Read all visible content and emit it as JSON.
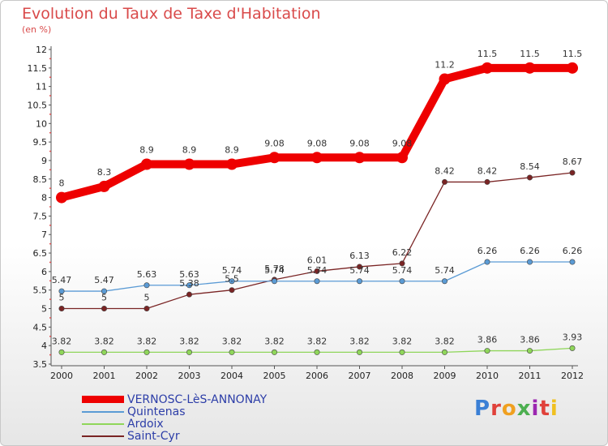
{
  "header": {
    "title": "Evolution du Taux de Taxe d'Habitation",
    "subtitle": "(en %)"
  },
  "logo": {
    "text": "Proxiti",
    "letter_colors": [
      "#3a7fd5",
      "#e0413a",
      "#f0a020",
      "#4caf50",
      "#9c27b0",
      "#e0413a",
      "#f0c020"
    ]
  },
  "chart_data": {
    "type": "line",
    "title": "Evolution du Taux de Taxe d'Habitation",
    "subtitle": "(en %)",
    "xlabel": "",
    "ylabel": "",
    "x": [
      "2000",
      "2001",
      "2002",
      "2003",
      "2004",
      "2005",
      "2006",
      "2007",
      "2008",
      "2009",
      "2010",
      "2011",
      "2012"
    ],
    "ylim": [
      3.5,
      12
    ],
    "yticks": [
      "3.5",
      "4",
      "4.5",
      "5",
      "5.5",
      "6",
      "6.5",
      "7",
      "7.5",
      "8",
      "8.5",
      "9",
      "9.5",
      "10",
      "10.5",
      "11",
      "11.5",
      "12"
    ],
    "grid": false,
    "legend_position": "bottom-left",
    "series": [
      {
        "name": "VERNOSC-LèS-ANNONAY",
        "color": "#ee0000",
        "values": [
          8,
          8.3,
          8.9,
          8.9,
          8.9,
          9.08,
          9.08,
          9.08,
          9.08,
          11.2,
          11.5,
          11.5,
          11.5
        ],
        "labels": [
          "8",
          "8.3",
          "8.9",
          "8.9",
          "8.9",
          "9.08",
          "9.08",
          "9.08",
          "9.08",
          "11.2",
          "11.5",
          "11.5",
          "11.5"
        ]
      },
      {
        "name": "Quintenas",
        "color": "#5b9bd5",
        "values": [
          5.47,
          5.47,
          5.63,
          5.63,
          5.74,
          5.74,
          5.74,
          5.74,
          5.74,
          5.74,
          6.26,
          6.26,
          6.26
        ],
        "labels": [
          "5.47",
          "5.47",
          "5.63",
          "5.63",
          "5.74",
          "5.74",
          "5.74",
          "5.74",
          "5.74",
          "5.74",
          "6.26",
          "6.26",
          "6.26"
        ]
      },
      {
        "name": "Ardoix",
        "color": "#8fd65a",
        "values": [
          3.82,
          3.82,
          3.82,
          3.82,
          3.82,
          3.82,
          3.82,
          3.82,
          3.82,
          3.82,
          3.86,
          3.86,
          3.93
        ],
        "labels": [
          "3.82",
          "3.82",
          "3.82",
          "3.82",
          "3.82",
          "3.82",
          "3.82",
          "3.82",
          "3.82",
          "3.82",
          "3.86",
          "3.86",
          "3.93"
        ]
      },
      {
        "name": "Saint-Cyr",
        "color": "#7a2424",
        "values": [
          5,
          5,
          5,
          5.38,
          5.5,
          5.78,
          6.01,
          6.13,
          6.22,
          8.42,
          8.42,
          8.54,
          8.67
        ],
        "labels": [
          "5",
          "5",
          "5",
          "5.38",
          "5.5",
          "5.78",
          "6.01",
          "6.13",
          "6.22",
          "8.42",
          "8.42",
          "8.54",
          "8.67"
        ]
      }
    ]
  }
}
